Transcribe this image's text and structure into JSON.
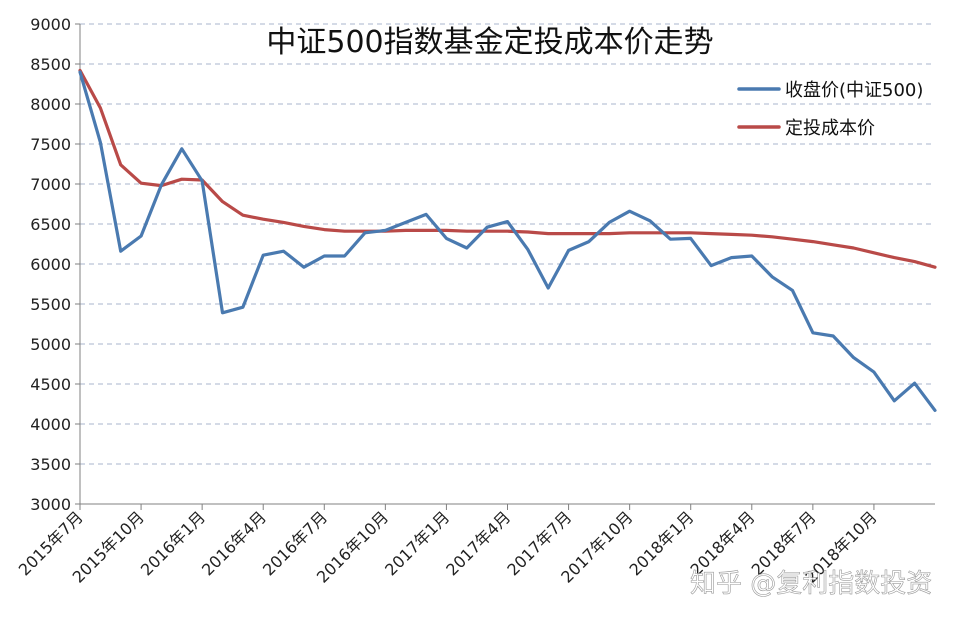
{
  "chart_data": {
    "type": "line",
    "title": "中证500指数基金定投成本价走势",
    "xlabel": "",
    "ylabel": "",
    "ylim": [
      3000,
      9000
    ],
    "yticks": [
      "3000",
      "3500",
      "4000",
      "4500",
      "5000",
      "5500",
      "6000",
      "6500",
      "7000",
      "7500",
      "8000",
      "8500",
      "9000"
    ],
    "x_tick_labels": [
      "2015年7月",
      "2015年10月",
      "2016年1月",
      "2016年4月",
      "2016年7月",
      "2016年10月",
      "2017年1月",
      "2017年4月",
      "2017年7月",
      "2017年10月",
      "2018年1月",
      "2018年4月",
      "2018年7月",
      "2018年10月"
    ],
    "grid": true,
    "legend_position": "top-right",
    "series": [
      {
        "name": "收盘价(中证500)",
        "color": "#4a7ab0",
        "values": [
          8400,
          7520,
          6160,
          6350,
          6990,
          7440,
          7040,
          5390,
          5460,
          6110,
          6160,
          5960,
          6100,
          6100,
          6390,
          6420,
          6520,
          6620,
          6320,
          6200,
          6460,
          6530,
          6180,
          5700,
          6170,
          6280,
          6520,
          6660,
          6540,
          6310,
          6320,
          5980,
          6080,
          6100,
          5840,
          5670,
          5140,
          5100,
          4830,
          4650,
          4290,
          4510,
          4170
        ]
      },
      {
        "name": "定投成本价",
        "color": "#b94a48",
        "values": [
          8420,
          7950,
          7240,
          7010,
          6980,
          7060,
          7050,
          6780,
          6610,
          6560,
          6520,
          6470,
          6430,
          6410,
          6410,
          6410,
          6420,
          6420,
          6420,
          6410,
          6410,
          6410,
          6400,
          6380,
          6380,
          6380,
          6380,
          6390,
          6390,
          6390,
          6390,
          6380,
          6370,
          6360,
          6340,
          6310,
          6280,
          6240,
          6200,
          6140,
          6080,
          6030,
          5960
        ]
      }
    ]
  },
  "watermark": "知乎 @复利指数投资"
}
